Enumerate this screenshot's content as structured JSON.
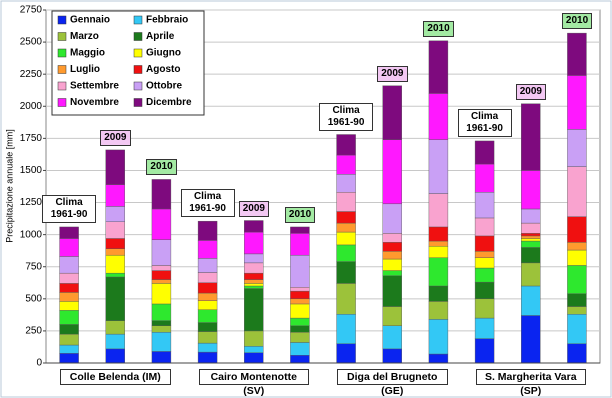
{
  "chart_data": {
    "type": "stacked_bar",
    "y_label": "Precipitazione annuale [mm]",
    "categories": [
      "Clima 1961-90",
      "2009",
      "2010",
      "Clima 1961-90",
      "2009",
      "2010",
      "Clima 1961-90",
      "2009",
      "2010",
      "Clima 1961-90",
      "2009",
      "2010"
    ],
    "category_colors": [
      "#ffffff",
      "#f3c8f3",
      "#a3eaa3",
      "#ffffff",
      "#f3c8f3",
      "#a3eaa3",
      "#ffffff",
      "#f3c8f3",
      "#a3eaa3",
      "#ffffff",
      "#f3c8f3",
      "#a3eaa3"
    ],
    "groups": [
      "Colle Belenda (IM)",
      "Cairo Montenotte (SV)",
      "Diga del Brugneto (GE)",
      "S. Margherita Vara (SP)"
    ],
    "series": [
      {
        "name": "Gennaio",
        "color": "#0a24f0",
        "values": [
          75,
          110,
          90,
          85,
          80,
          60,
          150,
          110,
          70,
          190,
          370,
          150
        ]
      },
      {
        "name": "Febbraio",
        "color": "#33c8f5",
        "values": [
          65,
          115,
          150,
          70,
          50,
          100,
          230,
          180,
          270,
          160,
          230,
          230
        ]
      },
      {
        "name": "Marzo",
        "color": "#9cc23a",
        "values": [
          85,
          105,
          50,
          90,
          120,
          80,
          240,
          150,
          140,
          150,
          180,
          60
        ]
      },
      {
        "name": "Aprile",
        "color": "#1c7a1c",
        "values": [
          75,
          340,
          40,
          70,
          330,
          50,
          170,
          240,
          120,
          130,
          120,
          100
        ]
      },
      {
        "name": "Maggio",
        "color": "#2ee82e",
        "values": [
          110,
          30,
          130,
          100,
          20,
          60,
          130,
          40,
          220,
          110,
          50,
          220
        ]
      },
      {
        "name": "Giugno",
        "color": "#ffff00",
        "values": [
          70,
          140,
          160,
          70,
          20,
          110,
          100,
          90,
          90,
          80,
          20,
          120
        ]
      },
      {
        "name": "Luglio",
        "color": "#ff9a2e",
        "values": [
          70,
          50,
          30,
          60,
          30,
          40,
          70,
          60,
          40,
          50,
          20,
          60
        ]
      },
      {
        "name": "Agosto",
        "color": "#f01010",
        "values": [
          70,
          80,
          70,
          80,
          50,
          60,
          90,
          70,
          110,
          120,
          20,
          200
        ]
      },
      {
        "name": "Settembre",
        "color": "#f9a3cf",
        "values": [
          80,
          130,
          40,
          80,
          80,
          30,
          150,
          70,
          260,
          140,
          80,
          390
        ]
      },
      {
        "name": "Ottobre",
        "color": "#c9a0f5",
        "values": [
          130,
          120,
          200,
          110,
          70,
          250,
          140,
          230,
          420,
          200,
          110,
          290
        ]
      },
      {
        "name": "Novembre",
        "color": "#ff18ff",
        "values": [
          140,
          170,
          240,
          140,
          170,
          170,
          150,
          500,
          360,
          220,
          300,
          420
        ]
      },
      {
        "name": "Dicembre",
        "color": "#7e0a7e",
        "values": [
          90,
          270,
          230,
          150,
          90,
          50,
          160,
          420,
          410,
          180,
          520,
          330
        ]
      }
    ],
    "ylim": [
      0,
      2750
    ],
    "yticks": [
      0,
      250,
      500,
      750,
      1000,
      1250,
      1500,
      1750,
      2000,
      2250,
      2500,
      2750
    ],
    "grid": true
  }
}
